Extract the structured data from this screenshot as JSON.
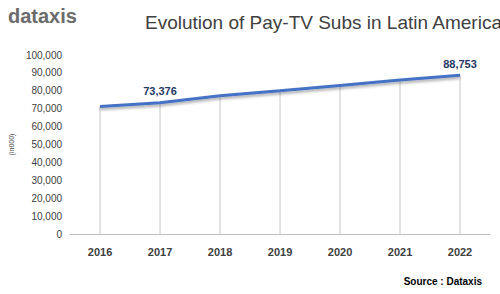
{
  "chart_data": {
    "type": "line",
    "title": "Evolution of Pay-TV Subs in Latin America",
    "logo": "dataxis",
    "source": "Source : Dataxis",
    "y_label": "(in000)",
    "categories": [
      "2016",
      "2017",
      "2018",
      "2019",
      "2020",
      "2021",
      "2022"
    ],
    "values": [
      71200,
      73376,
      77200,
      80000,
      83000,
      86000,
      88753
    ],
    "value_labels": [
      null,
      "73,376",
      null,
      null,
      null,
      null,
      "88,753"
    ],
    "data_labels": true,
    "color": "#4472c4",
    "ylim": [
      0,
      100000
    ],
    "yticks": [
      0,
      {
        "value": 10000,
        "label": "10,000"
      },
      {
        "value": 20000,
        "label": "20,000"
      },
      {
        "value": 30000,
        "label": "30,000"
      },
      {
        "value": 40000,
        "label": "40,000"
      },
      {
        "value": 50000,
        "label": "50,000"
      },
      {
        "value": 60000,
        "label": "60,000"
      },
      {
        "value": 70000,
        "label": "70,000"
      },
      {
        "value": 80000,
        "label": "80,000"
      },
      {
        "value": 90000,
        "label": "90,000"
      },
      {
        "value": 100000,
        "label": "100,000"
      }
    ],
    "grid": false
  }
}
